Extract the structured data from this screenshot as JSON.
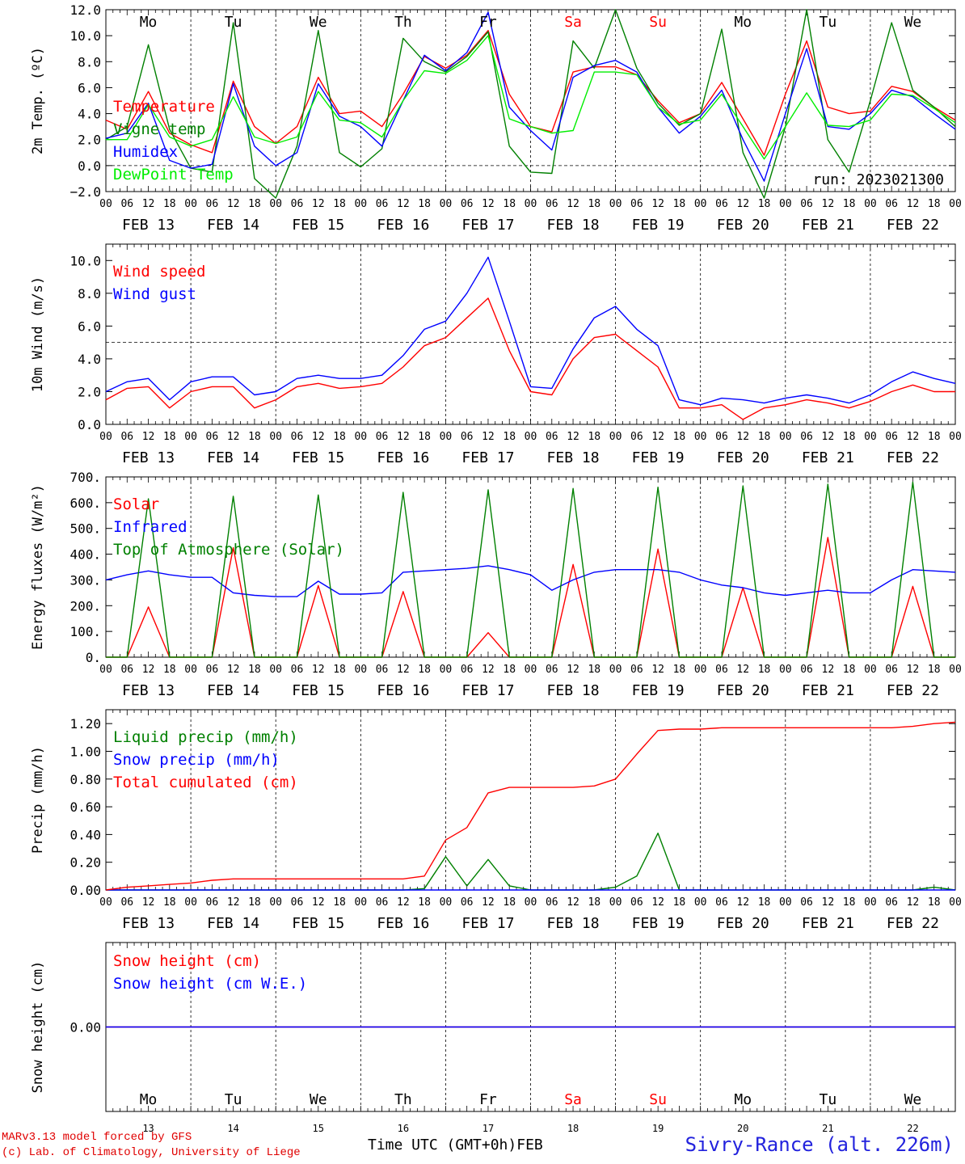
{
  "chart_data": [
    {
      "type": "line",
      "ylabel": "2m Temp. (ºC)",
      "ylim": [
        -2,
        12
      ],
      "yticks": [
        "−2.0",
        "0.0",
        "2.0",
        "4.0",
        "6.0",
        "8.0",
        "10.0",
        "12.0"
      ],
      "ref_line": 0,
      "run_label": "run: 2023021300",
      "legend": [
        "Temperature",
        "Vigne temp",
        "Humidex",
        "DewPoint Temp"
      ],
      "x_hours": [
        0,
        6,
        12,
        18,
        24,
        30,
        36,
        42,
        48,
        54,
        60,
        66,
        72,
        78,
        84,
        90,
        96,
        102,
        108,
        114,
        120,
        126,
        132,
        138,
        144,
        150,
        156,
        162,
        168,
        174,
        180,
        186,
        192,
        198,
        204,
        210,
        216,
        222,
        228,
        234,
        240
      ],
      "series": [
        {
          "name": "Temperature",
          "color": "#ff0000",
          "values": [
            3.5,
            2.8,
            5.7,
            2.5,
            1.6,
            1.0,
            6.5,
            3.0,
            1.7,
            3.0,
            6.8,
            4.0,
            4.2,
            3.0,
            5.5,
            8.4,
            7.5,
            8.5,
            10.4,
            5.5,
            3.0,
            2.6,
            7.2,
            7.6,
            7.6,
            7.0,
            5.0,
            3.3,
            4.0,
            6.4,
            3.6,
            0.8,
            5.5,
            9.6,
            4.5,
            4.0,
            4.2,
            6.1,
            5.7,
            4.5,
            3.5
          ]
        },
        {
          "name": "Vigne temp",
          "color": "#008000",
          "values": [
            2.0,
            3.0,
            9.3,
            2.8,
            -0.2,
            -0.5,
            11.0,
            -1.0,
            -2.5,
            1.5,
            10.4,
            1.0,
            -0.1,
            1.3,
            9.8,
            8.0,
            7.2,
            8.4,
            10.3,
            1.5,
            -0.5,
            -0.6,
            9.6,
            7.5,
            12.0,
            7.5,
            4.8,
            3.1,
            4.0,
            10.5,
            1.0,
            -2.5,
            3.0,
            12.0,
            2.0,
            -0.5,
            5.0,
            11.0,
            5.8,
            4.5,
            3.0
          ]
        },
        {
          "name": "Humidex",
          "color": "#0000ff",
          "values": [
            2.1,
            2.5,
            4.8,
            0.4,
            -0.2,
            0.1,
            6.3,
            1.5,
            0.0,
            1.0,
            6.3,
            3.8,
            3.0,
            1.5,
            5.0,
            8.5,
            7.3,
            8.7,
            11.8,
            4.5,
            2.7,
            1.2,
            6.8,
            7.7,
            8.1,
            7.2,
            4.5,
            2.5,
            3.8,
            5.8,
            2.0,
            -1.2,
            4.0,
            9.0,
            3.0,
            2.8,
            4.0,
            5.8,
            5.3,
            4.0,
            2.8
          ]
        },
        {
          "name": "DewPoint Temp",
          "color": "#00ee00",
          "values": [
            2.0,
            2.0,
            4.7,
            2.2,
            1.5,
            2.0,
            5.3,
            2.2,
            1.7,
            2.2,
            5.7,
            3.5,
            3.3,
            2.2,
            5.0,
            7.3,
            7.1,
            8.1,
            10.0,
            3.6,
            3.0,
            2.5,
            2.7,
            7.2,
            7.2,
            7.0,
            4.5,
            3.2,
            3.5,
            5.5,
            3.0,
            0.5,
            3.0,
            5.6,
            3.1,
            3.0,
            3.5,
            5.5,
            5.4,
            4.4,
            3.3
          ]
        }
      ]
    },
    {
      "type": "line",
      "ylabel": "10m Wind (m/s)",
      "ylim": [
        0,
        11
      ],
      "yticks": [
        "0.0",
        "2.0",
        "4.0",
        "6.0",
        "8.0",
        "10.0"
      ],
      "ref_line": 5,
      "legend": [
        "Wind speed",
        "Wind gust"
      ],
      "x_hours": [
        0,
        6,
        12,
        18,
        24,
        30,
        36,
        42,
        48,
        54,
        60,
        66,
        72,
        78,
        84,
        90,
        96,
        102,
        108,
        114,
        120,
        126,
        132,
        138,
        144,
        150,
        156,
        162,
        168,
        174,
        180,
        186,
        192,
        198,
        204,
        210,
        216,
        222,
        228,
        234,
        240
      ],
      "series": [
        {
          "name": "Wind speed",
          "color": "#ff0000",
          "values": [
            1.5,
            2.2,
            2.3,
            1.0,
            2.0,
            2.3,
            2.3,
            1.0,
            1.5,
            2.3,
            2.5,
            2.2,
            2.3,
            2.5,
            3.5,
            4.8,
            5.3,
            6.5,
            7.7,
            4.5,
            2.0,
            1.8,
            4.0,
            5.3,
            5.5,
            4.5,
            3.5,
            1.0,
            1.0,
            1.2,
            0.3,
            1.0,
            1.2,
            1.5,
            1.3,
            1.0,
            1.4,
            2.0,
            2.4,
            2.0,
            2.0
          ]
        },
        {
          "name": "Wind gust",
          "color": "#0000ff",
          "values": [
            2.0,
            2.6,
            2.8,
            1.5,
            2.6,
            2.9,
            2.9,
            1.8,
            2.0,
            2.8,
            3.0,
            2.8,
            2.8,
            3.0,
            4.2,
            5.8,
            6.3,
            8.0,
            10.2,
            6.3,
            2.3,
            2.2,
            4.6,
            6.5,
            7.2,
            5.8,
            4.8,
            1.5,
            1.2,
            1.6,
            1.5,
            1.3,
            1.6,
            1.8,
            1.6,
            1.3,
            1.8,
            2.6,
            3.2,
            2.8,
            2.5
          ]
        }
      ]
    },
    {
      "type": "line",
      "ylabel": "Energy fluxes (W/m²)",
      "ylim": [
        0,
        700
      ],
      "yticks": [
        "0.",
        "100.",
        "200.",
        "300.",
        "400.",
        "500.",
        "600.",
        "700."
      ],
      "legend": [
        "Solar",
        "Infrared",
        "Top of Atmosphere (Solar)"
      ],
      "x_hours": [
        0,
        6,
        12,
        18,
        24,
        30,
        36,
        42,
        48,
        54,
        60,
        66,
        72,
        78,
        84,
        90,
        96,
        102,
        108,
        114,
        120,
        126,
        132,
        138,
        144,
        150,
        156,
        162,
        168,
        174,
        180,
        186,
        192,
        198,
        204,
        210,
        216,
        222,
        228,
        234,
        240
      ],
      "series": [
        {
          "name": "Solar",
          "color": "#ff0000",
          "values": [
            0,
            0,
            195,
            0,
            0,
            0,
            425,
            0,
            0,
            0,
            278,
            0,
            0,
            0,
            255,
            0,
            0,
            0,
            95,
            0,
            0,
            0,
            360,
            0,
            0,
            0,
            420,
            0,
            0,
            0,
            270,
            0,
            0,
            0,
            465,
            0,
            0,
            0,
            275,
            0,
            0
          ]
        },
        {
          "name": "Infrared",
          "color": "#0000ff",
          "values": [
            300,
            320,
            335,
            320,
            310,
            310,
            250,
            240,
            235,
            235,
            295,
            245,
            245,
            250,
            330,
            335,
            340,
            345,
            355,
            340,
            320,
            260,
            300,
            330,
            340,
            340,
            340,
            330,
            300,
            280,
            270,
            250,
            240,
            250,
            260,
            250,
            250,
            300,
            340,
            335,
            330
          ]
        },
        {
          "name": "Top of Atmosphere (Solar)",
          "color": "#008000",
          "values": [
            0,
            0,
            615,
            0,
            0,
            0,
            625,
            0,
            0,
            0,
            630,
            0,
            0,
            0,
            640,
            0,
            0,
            0,
            650,
            0,
            0,
            0,
            655,
            0,
            0,
            0,
            660,
            0,
            0,
            0,
            665,
            0,
            0,
            0,
            672,
            0,
            0,
            0,
            680,
            0,
            0
          ]
        }
      ]
    },
    {
      "type": "line",
      "ylabel": "Precip (mm/h)",
      "ylim": [
        0,
        1.3
      ],
      "yticks": [
        "0.00",
        "0.20",
        "0.40",
        "0.60",
        "0.80",
        "1.00",
        "1.20"
      ],
      "legend": [
        "Liquid precip (mm/h)",
        "Snow precip (mm/h)",
        "Total cumulated (cm)"
      ],
      "x_hours": [
        0,
        6,
        12,
        18,
        24,
        30,
        36,
        42,
        48,
        54,
        60,
        66,
        72,
        78,
        84,
        90,
        96,
        102,
        108,
        114,
        120,
        126,
        132,
        138,
        144,
        150,
        156,
        162,
        168,
        174,
        180,
        186,
        192,
        198,
        204,
        210,
        216,
        222,
        228,
        234,
        240
      ],
      "series": [
        {
          "name": "Liquid precip (mm/h)",
          "color": "#008000",
          "values": [
            0,
            0,
            0,
            0,
            0,
            0,
            0,
            0,
            0,
            0,
            0,
            0,
            0,
            0,
            0,
            0.01,
            0.24,
            0.03,
            0.22,
            0.03,
            0,
            0,
            0,
            0,
            0.02,
            0.1,
            0.41,
            0,
            0,
            0,
            0,
            0,
            0,
            0,
            0,
            0,
            0,
            0,
            0,
            0.02,
            0
          ]
        },
        {
          "name": "Snow precip (mm/h)",
          "color": "#0000ff",
          "values": [
            0,
            0,
            0,
            0,
            0,
            0,
            0,
            0,
            0,
            0,
            0,
            0,
            0,
            0,
            0,
            0,
            0,
            0,
            0,
            0,
            0,
            0,
            0,
            0,
            0,
            0,
            0,
            0,
            0,
            0,
            0,
            0,
            0,
            0,
            0,
            0,
            0,
            0,
            0,
            0,
            0
          ]
        },
        {
          "name": "Total cumulated (cm)",
          "color": "#ff0000",
          "values": [
            0,
            0.02,
            0.03,
            0.04,
            0.05,
            0.07,
            0.08,
            0.08,
            0.08,
            0.08,
            0.08,
            0.08,
            0.08,
            0.08,
            0.08,
            0.1,
            0.36,
            0.45,
            0.7,
            0.74,
            0.74,
            0.74,
            0.74,
            0.75,
            0.8,
            0.98,
            1.15,
            1.16,
            1.16,
            1.17,
            1.17,
            1.17,
            1.17,
            1.17,
            1.17,
            1.17,
            1.17,
            1.17,
            1.18,
            1.2,
            1.21
          ]
        }
      ]
    },
    {
      "type": "line",
      "ylabel": "Snow height (cm)",
      "ylim": [
        -1,
        1
      ],
      "yticks": [
        "0.00"
      ],
      "legend": [
        "Snow height (cm)",
        "Snow height (cm W.E.)"
      ],
      "x_hours": [
        0,
        240
      ],
      "series": [
        {
          "name": "Snow height (cm)",
          "color": "#ff0000",
          "values": [
            0,
            0
          ]
        },
        {
          "name": "Snow height (cm W.E.)",
          "color": "#0000ff",
          "values": [
            0,
            0
          ]
        }
      ]
    }
  ],
  "x_axis": {
    "hour_labels": [
      "00",
      "06",
      "12",
      "18"
    ],
    "end_label": "00",
    "dates": [
      "FEB 13",
      "FEB 14",
      "FEB 15",
      "FEB 16",
      "FEB 17",
      "FEB 18",
      "FEB 19",
      "FEB 20",
      "FEB 21",
      "FEB 22"
    ],
    "days": [
      "Mo",
      "Tu",
      "We",
      "Th",
      "Fr",
      "Sa",
      "Su",
      "Mo",
      "Tu",
      "We"
    ],
    "weekend_color": "#ff0000",
    "weekend_days": [
      5,
      6
    ],
    "day_numbers": [
      "13",
      "14",
      "15",
      "16",
      "17",
      "18",
      "19",
      "20",
      "21",
      "22"
    ],
    "label": "Time UTC (GMT+0h)",
    "month": "FEB"
  },
  "footer": {
    "model": "MARv3.13 model forced by GFS",
    "lab": "(c) Lab. of Climatology, University of Liege",
    "station": "Sivry-Rance (alt. 226m)"
  }
}
